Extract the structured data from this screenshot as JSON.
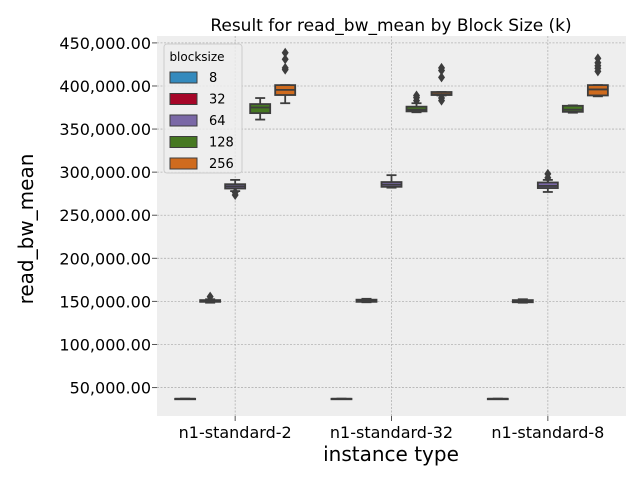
{
  "chart_data": {
    "type": "box",
    "title": "Result for read_bw_mean by Block Size (k)",
    "xlabel": "instance type",
    "ylabel": "read_bw_mean",
    "ylim": [
      17000,
      458000
    ],
    "yticks": [
      {
        "value": 50000,
        "label": "50,000.00"
      },
      {
        "value": 100000,
        "label": "100,000.00"
      },
      {
        "value": 150000,
        "label": "150,000.00"
      },
      {
        "value": 200000,
        "label": "200,000.00"
      },
      {
        "value": 250000,
        "label": "250,000.00"
      },
      {
        "value": 300000,
        "label": "300,000.00"
      },
      {
        "value": 350000,
        "label": "350,000.00"
      },
      {
        "value": 400000,
        "label": "400,000.00"
      },
      {
        "value": 450000,
        "label": "450,000.00"
      }
    ],
    "categories": [
      "n1-standard-2",
      "n1-standard-32",
      "n1-standard-8"
    ],
    "grid": true,
    "legend": {
      "title": "blocksize",
      "placement": "upper-left"
    },
    "series": [
      {
        "name": "8",
        "color": "#348ABD",
        "boxes": [
          {
            "whislo": 37000,
            "q1": 37000,
            "med": 37000,
            "q3": 37000,
            "whishi": 37000,
            "fliers": []
          },
          {
            "whislo": 37000,
            "q1": 37000,
            "med": 37000,
            "q3": 37000,
            "whishi": 37000,
            "fliers": []
          },
          {
            "whislo": 37000,
            "q1": 37000,
            "med": 37000,
            "q3": 37000,
            "whishi": 37000,
            "fliers": []
          }
        ]
      },
      {
        "name": "32",
        "color": "#A60628",
        "boxes": [
          {
            "whislo": 148500,
            "q1": 149500,
            "med": 150200,
            "q3": 151500,
            "whishi": 152500,
            "fliers": [
              155500
            ]
          },
          {
            "whislo": 149000,
            "q1": 149500,
            "med": 150300,
            "q3": 152000,
            "whishi": 153000,
            "fliers": []
          },
          {
            "whislo": 148500,
            "q1": 149000,
            "med": 150000,
            "q3": 151500,
            "whishi": 152500,
            "fliers": []
          }
        ]
      },
      {
        "name": "64",
        "color": "#7A68A6",
        "boxes": [
          {
            "whislo": 278000,
            "q1": 281000,
            "med": 283500,
            "q3": 286000,
            "whishi": 291000,
            "fliers": [
              273500,
              276500
            ]
          },
          {
            "whislo": 282000,
            "q1": 283000,
            "med": 285500,
            "q3": 288500,
            "whishi": 296500,
            "fliers": []
          },
          {
            "whislo": 277000,
            "q1": 281500,
            "med": 284000,
            "q3": 288000,
            "whishi": 291000,
            "fliers": [
              293500,
              298000
            ]
          }
        ]
      },
      {
        "name": "128",
        "color": "#467821",
        "boxes": [
          {
            "whislo": 361000,
            "q1": 368500,
            "med": 375000,
            "q3": 379000,
            "whishi": 386000,
            "fliers": []
          },
          {
            "whislo": 369500,
            "q1": 370500,
            "med": 372500,
            "q3": 376000,
            "whishi": 380000,
            "fliers": [
              383000,
              386500,
              389000
            ]
          },
          {
            "whislo": 369000,
            "q1": 370000,
            "med": 372500,
            "q3": 377000,
            "whishi": 377500,
            "fliers": []
          }
        ]
      },
      {
        "name": "256",
        "color": "#CF4457",
        "fill": "#CF6B1E",
        "boxes": [
          {
            "whislo": 380000,
            "q1": 389500,
            "med": 395500,
            "q3": 401000,
            "whishi": 401000,
            "fliers": [
              419000,
              421000,
              431000,
              438500
            ]
          },
          {
            "whislo": 389000,
            "q1": 389500,
            "med": 390500,
            "q3": 393000,
            "whishi": 393000,
            "fliers": [
              383000,
              386000,
              410000,
              418000,
              421000
            ]
          },
          {
            "whislo": 388000,
            "q1": 389000,
            "med": 396000,
            "q3": 401000,
            "whishi": 401000,
            "fliers": [
              417000,
              420500,
              423500,
              427000,
              432000
            ]
          }
        ]
      }
    ]
  }
}
